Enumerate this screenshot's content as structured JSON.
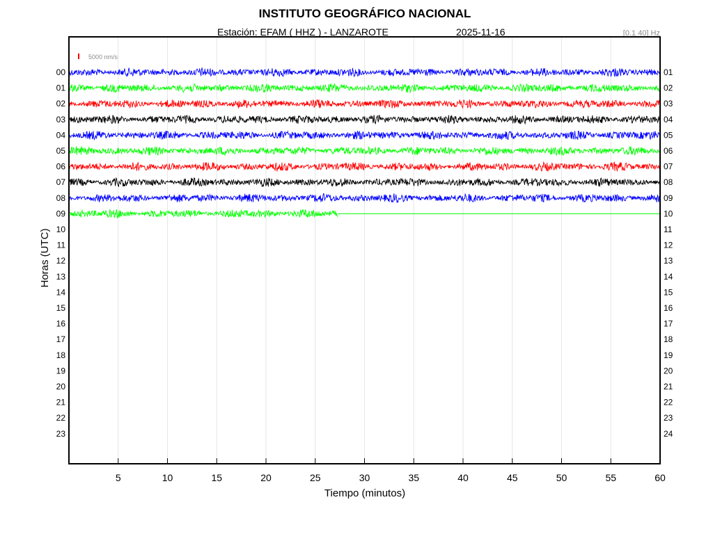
{
  "header": {
    "title": "INSTITUTO GEOGRÁFICO NACIONAL",
    "station": "Estación:  EFAM ( HHZ ) - LANZAROTE",
    "date": "2025-11-16",
    "filter": "[0.1 40] Hz"
  },
  "scale": {
    "label": "5000 nm/s",
    "color": "#ff0000"
  },
  "chart_data": {
    "type": "line",
    "title": "INSTITUTO GEOGRÁFICO NACIONAL",
    "xlabel": "Tiempo (minutos)",
    "ylabel": "Horas (UTC)",
    "xlim": [
      0,
      60
    ],
    "x_ticks": [
      5,
      10,
      15,
      20,
      25,
      30,
      35,
      40,
      45,
      50,
      55,
      60
    ],
    "left_labels": [
      "00",
      "01",
      "02",
      "03",
      "04",
      "05",
      "06",
      "07",
      "08",
      "09",
      "10",
      "11",
      "12",
      "13",
      "14",
      "15",
      "16",
      "17",
      "18",
      "19",
      "20",
      "21",
      "22",
      "23"
    ],
    "right_labels": [
      "01",
      "02",
      "03",
      "04",
      "05",
      "06",
      "07",
      "08",
      "09",
      "10",
      "11",
      "12",
      "13",
      "14",
      "15",
      "16",
      "17",
      "18",
      "19",
      "20",
      "21",
      "22",
      "23",
      "24"
    ],
    "grid": true,
    "series": [
      {
        "hour": "00",
        "color": "#0000ff",
        "data_until_min": 60
      },
      {
        "hour": "01",
        "color": "#00ff00",
        "data_until_min": 60
      },
      {
        "hour": "02",
        "color": "#ff0000",
        "data_until_min": 60
      },
      {
        "hour": "03",
        "color": "#000000",
        "data_until_min": 60
      },
      {
        "hour": "04",
        "color": "#0000ff",
        "data_until_min": 60
      },
      {
        "hour": "05",
        "color": "#00ff00",
        "data_until_min": 60
      },
      {
        "hour": "06",
        "color": "#ff0000",
        "data_until_min": 60
      },
      {
        "hour": "07",
        "color": "#000000",
        "data_until_min": 60
      },
      {
        "hour": "08",
        "color": "#0000ff",
        "data_until_min": 60
      },
      {
        "hour": "09",
        "color": "#00ff00",
        "data_until_min": 27.3
      }
    ]
  }
}
